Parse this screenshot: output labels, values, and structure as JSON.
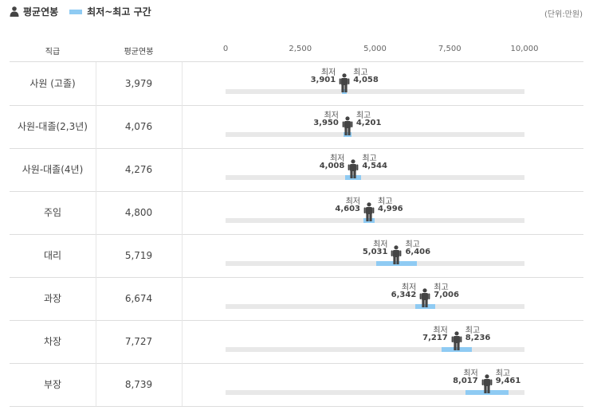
{
  "legend": {
    "avg_label": "평균연봉",
    "range_label": "최저~최고 구간",
    "avg_icon": "person-icon"
  },
  "unit": "(단위:만원)",
  "columns": {
    "rank": "직급",
    "avg": "평균연봉"
  },
  "colors": {
    "range": "#8fcbf3",
    "track": "#e8e8e8",
    "icon": "#444444"
  },
  "chart_data": {
    "type": "bar",
    "title": "",
    "xlim": [
      0,
      10000
    ],
    "ticks": [
      "0",
      "2,500",
      "5,000",
      "7,500",
      "10,000"
    ],
    "tick_values": [
      0,
      2500,
      5000,
      7500,
      10000
    ],
    "min_text": "최저",
    "max_text": "최고",
    "rows": [
      {
        "rank": "사원 (고졸)",
        "avg": 3979,
        "avg_label": "3,979",
        "min": 3901,
        "min_label": "3,901",
        "max": 4058,
        "max_label": "4,058"
      },
      {
        "rank": "사원-대졸(2,3년)",
        "avg": 4076,
        "avg_label": "4,076",
        "min": 3950,
        "min_label": "3,950",
        "max": 4201,
        "max_label": "4,201"
      },
      {
        "rank": "사원-대졸(4년)",
        "avg": 4276,
        "avg_label": "4,276",
        "min": 4008,
        "min_label": "4,008",
        "max": 4544,
        "max_label": "4,544"
      },
      {
        "rank": "주임",
        "avg": 4800,
        "avg_label": "4,800",
        "min": 4603,
        "min_label": "4,603",
        "max": 4996,
        "max_label": "4,996"
      },
      {
        "rank": "대리",
        "avg": 5719,
        "avg_label": "5,719",
        "min": 5031,
        "min_label": "5,031",
        "max": 6406,
        "max_label": "6,406"
      },
      {
        "rank": "과장",
        "avg": 6674,
        "avg_label": "6,674",
        "min": 6342,
        "min_label": "6,342",
        "max": 7006,
        "max_label": "7,006"
      },
      {
        "rank": "차장",
        "avg": 7727,
        "avg_label": "7,727",
        "min": 7217,
        "min_label": "7,217",
        "max": 8236,
        "max_label": "8,236"
      },
      {
        "rank": "부장",
        "avg": 8739,
        "avg_label": "8,739",
        "min": 8017,
        "min_label": "8,017",
        "max": 9461,
        "max_label": "9,461"
      }
    ]
  }
}
